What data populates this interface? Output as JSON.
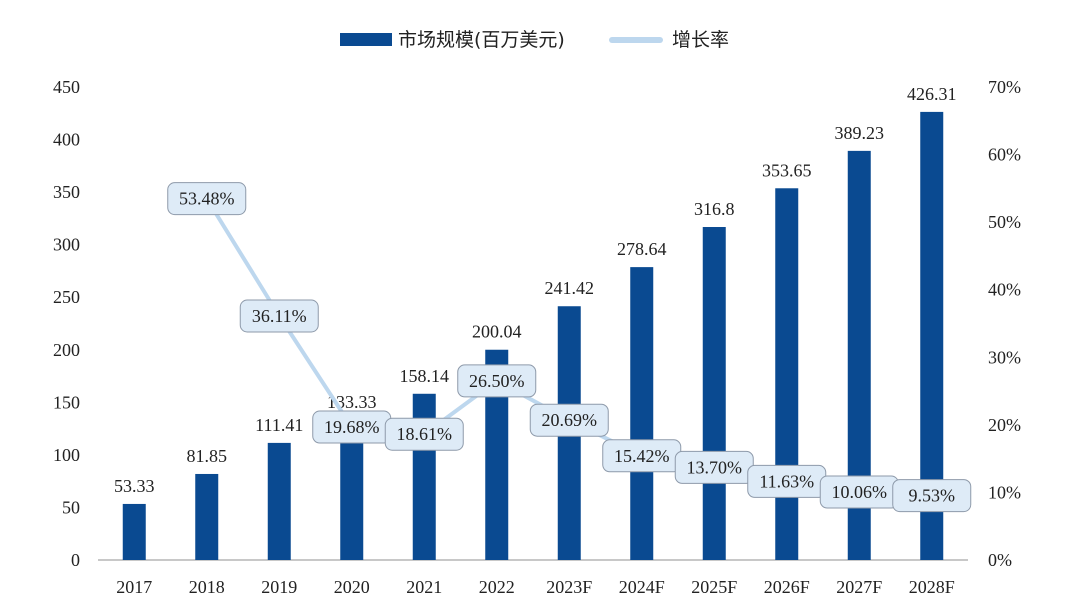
{
  "chart_data": {
    "type": "bar",
    "categories": [
      "2017",
      "2018",
      "2019",
      "2020",
      "2021",
      "2022",
      "2023F",
      "2024F",
      "2025F",
      "2026F",
      "2027F",
      "2028F"
    ],
    "series": [
      {
        "name": "市场规模(百万美元)",
        "kind": "bar",
        "axis": "left",
        "color": "#0A4A91",
        "values": [
          53.33,
          81.85,
          111.41,
          133.33,
          158.14,
          200.04,
          241.42,
          278.64,
          316.8,
          353.65,
          389.23,
          426.31
        ],
        "labels": [
          "53.33",
          "81.85",
          "111.41",
          "133.33",
          "158.14",
          "200.04",
          "241.42",
          "278.64",
          "316.8",
          "353.65",
          "389.23",
          "426.31"
        ]
      },
      {
        "name": "增长率",
        "kind": "line",
        "axis": "right",
        "color": "#BDD7EE",
        "values": [
          null,
          53.48,
          36.11,
          19.68,
          18.61,
          26.5,
          20.69,
          15.42,
          13.7,
          11.63,
          10.06,
          9.53
        ],
        "labels": [
          null,
          "53.48%",
          "36.11%",
          "19.68%",
          "18.61%",
          "26.50%",
          "20.69%",
          "15.42%",
          "13.70%",
          "11.63%",
          "10.06%",
          "9.53%"
        ]
      }
    ],
    "y_left": {
      "min": 0,
      "max": 450,
      "ticks": [
        "0",
        "50",
        "100",
        "150",
        "200",
        "250",
        "300",
        "350",
        "400",
        "450"
      ]
    },
    "y_right": {
      "min": 0,
      "max": 70,
      "ticks": [
        "0%",
        "10%",
        "20%",
        "30%",
        "40%",
        "50%",
        "60%",
        "70%"
      ]
    },
    "legend": {
      "position": "top-center",
      "items": [
        "市场规模(百万美元)",
        "增长率"
      ]
    },
    "grid": false,
    "title": "",
    "xlabel": "",
    "ylabel": ""
  }
}
